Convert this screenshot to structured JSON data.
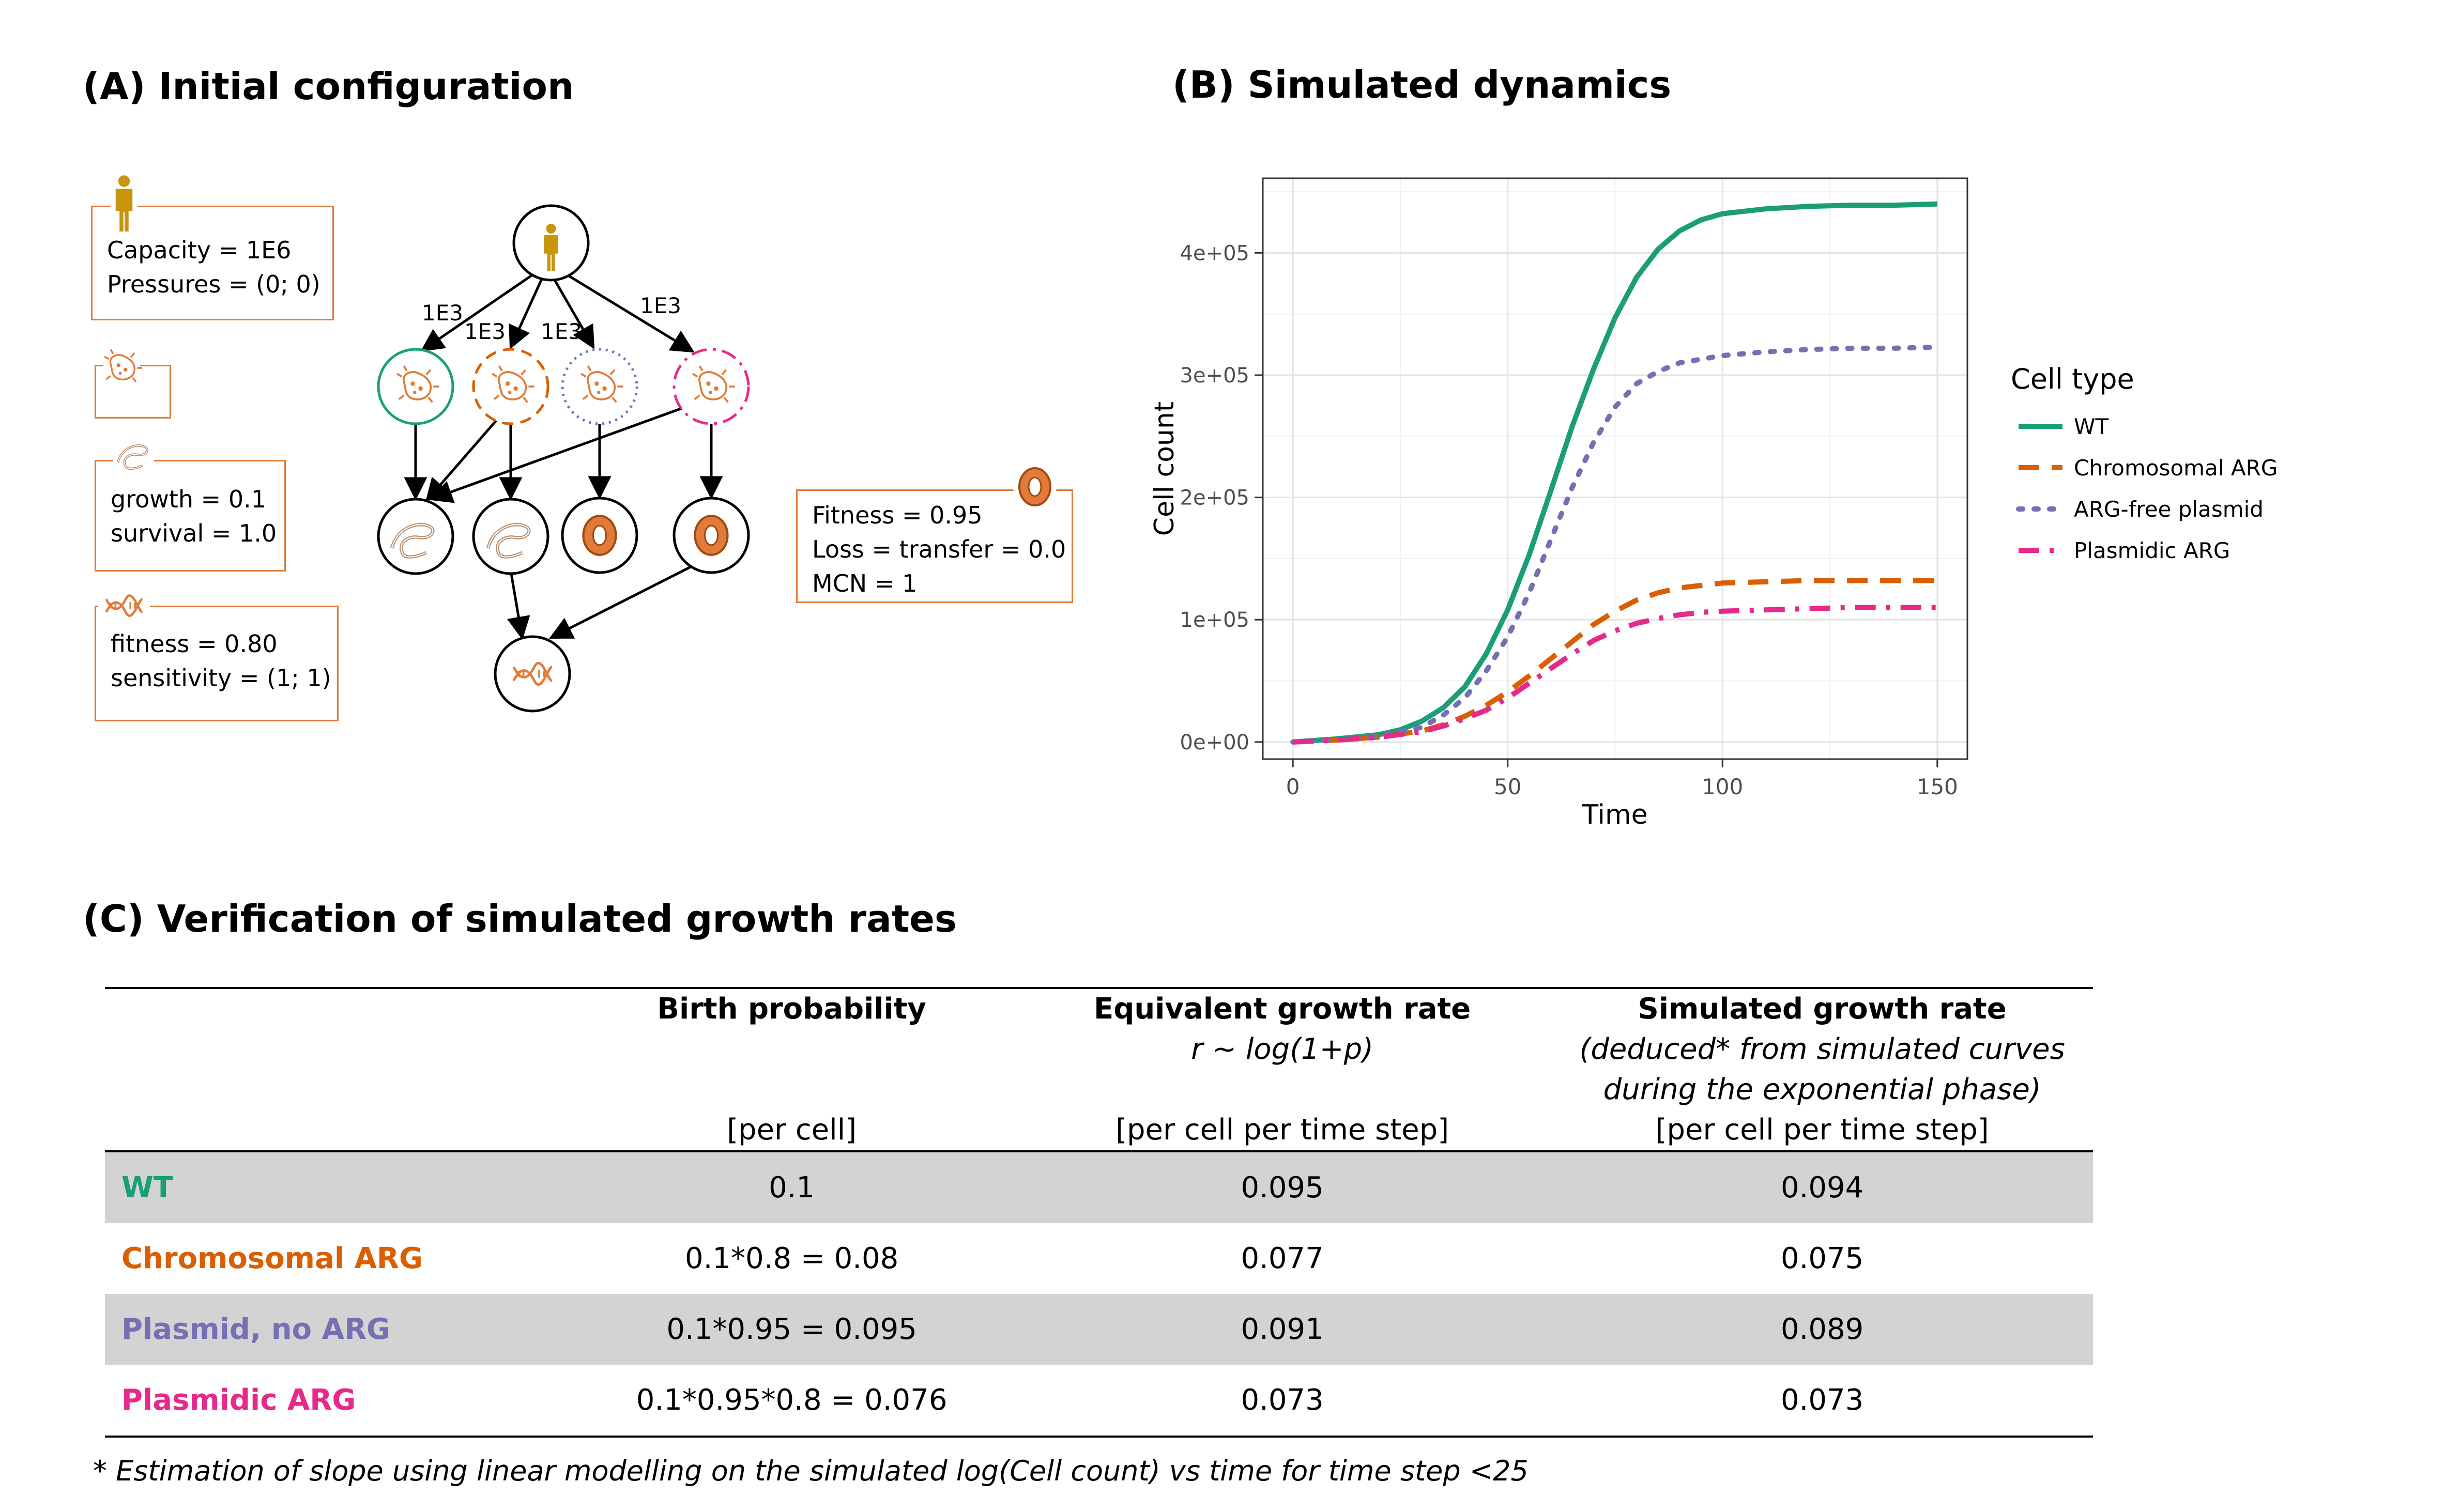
{
  "panel_a": {
    "title": "(A) Initial configuration",
    "host_box": {
      "line1": "Capacity = 1E6",
      "line2": "Pressures = (0; 0)",
      "icon": "person-icon"
    },
    "bacterium_box": {
      "icon": "bacterium-icon"
    },
    "chromosome_box": {
      "line1": "growth = 0.1",
      "line2": "survival = 1.0",
      "icon": "chromosome-icon"
    },
    "gene_box": {
      "line1": "fitness = 0.80",
      "line2": "sensitivity = (1; 1)",
      "icon": "dna-icon"
    },
    "plasmid_box": {
      "line1": "Fitness = 0.95",
      "line2": "Loss = transfer = 0.0",
      "line3": "MCN = 1",
      "icon": "plasmid-icon"
    },
    "edge_labels": [
      "1E3",
      "1E3",
      "1E3",
      "1E3"
    ],
    "colors": {
      "box_border": "#E07B39",
      "wt": "#1B9E77",
      "chromosomal": "#D95F02",
      "plasmid_free": "#7570B3",
      "plasmidic": "#E7298A",
      "host_icon": "#C8950B"
    }
  },
  "panel_b": {
    "title": "(B) Simulated dynamics"
  },
  "chart_data": {
    "type": "line",
    "xlabel": "Time",
    "ylabel": "Cell count",
    "xlim": [
      -7,
      157
    ],
    "ylim": [
      -14000,
      461000
    ],
    "x_ticks": [
      0,
      50,
      100,
      150
    ],
    "x_tick_labels": [
      "0",
      "50",
      "100",
      "150"
    ],
    "y_ticks": [
      0,
      100000,
      200000,
      300000,
      400000
    ],
    "y_tick_labels": [
      "0e+00",
      "1e+05",
      "2e+05",
      "3e+05",
      "4e+05"
    ],
    "grid": true,
    "legend": {
      "title": "Cell type",
      "placement": "right"
    },
    "series": [
      {
        "name": "WT",
        "color": "#1B9E77",
        "dash": "solid",
        "x": [
          0,
          10,
          20,
          25,
          30,
          35,
          40,
          45,
          50,
          55,
          60,
          65,
          70,
          75,
          80,
          85,
          90,
          95,
          100,
          110,
          120,
          130,
          140,
          150
        ],
        "y": [
          0,
          2500,
          6000,
          10000,
          17000,
          28000,
          45000,
          72000,
          108000,
          153000,
          205000,
          258000,
          305000,
          347000,
          380000,
          403000,
          418000,
          427000,
          432000,
          436000,
          438000,
          439000,
          439000,
          440000
        ]
      },
      {
        "name": "Chromosomal ARG",
        "color": "#D95F02",
        "dash": "dashed",
        "x": [
          0,
          10,
          20,
          30,
          35,
          40,
          45,
          50,
          55,
          60,
          65,
          70,
          75,
          80,
          85,
          90,
          95,
          100,
          110,
          120,
          130,
          140,
          150
        ],
        "y": [
          0,
          1500,
          4000,
          9000,
          14000,
          21000,
          30000,
          41000,
          54000,
          68000,
          82000,
          96000,
          107000,
          116000,
          122000,
          126000,
          128000,
          130000,
          131000,
          132000,
          132000,
          132000,
          132000
        ]
      },
      {
        "name": "ARG-free plasmid",
        "color": "#7570B3",
        "dash": "dotted",
        "x": [
          0,
          10,
          20,
          30,
          35,
          40,
          45,
          50,
          55,
          60,
          65,
          70,
          75,
          80,
          85,
          90,
          95,
          100,
          110,
          120,
          130,
          140,
          150
        ],
        "y": [
          0,
          1500,
          4500,
          12000,
          22000,
          36000,
          58000,
          86000,
          122000,
          165000,
          208000,
          245000,
          274000,
          293000,
          303000,
          310000,
          313000,
          316000,
          319000,
          321000,
          322000,
          322000,
          323000
        ]
      },
      {
        "name": "Plasmidic ARG",
        "color": "#E7298A",
        "dash": "dotdash",
        "x": [
          0,
          10,
          20,
          30,
          35,
          40,
          45,
          50,
          55,
          60,
          65,
          70,
          75,
          80,
          85,
          90,
          95,
          100,
          110,
          120,
          130,
          140,
          150
        ],
        "y": [
          0,
          1500,
          3800,
          8500,
          13000,
          19000,
          26000,
          36000,
          48000,
          60000,
          72000,
          83000,
          91000,
          97000,
          101000,
          104000,
          106000,
          107000,
          108000,
          109000,
          110000,
          110000,
          110000
        ]
      }
    ]
  },
  "panel_c": {
    "title": "(C) Verification of simulated growth rates",
    "columns": [
      {
        "title": "",
        "sub1": "",
        "sub2": "",
        "unit": ""
      },
      {
        "title": "Birth probability",
        "sub1": "",
        "sub2": "",
        "unit": "[per cell]"
      },
      {
        "title": "Equivalent growth rate",
        "sub1": "r ~ log(1+p)",
        "sub2": "",
        "unit": "[per cell per time step]"
      },
      {
        "title": "Simulated growth rate",
        "sub1": "(deduced* from simulated curves",
        "sub2": "during the exponential phase)",
        "unit": "[per cell per time step]"
      }
    ],
    "rows": [
      {
        "label": "WT",
        "color": "#1B9E77",
        "birth": "0.1",
        "equivalent": "0.095",
        "simulated": "0.094"
      },
      {
        "label": "Chromosomal ARG",
        "color": "#D95F02",
        "birth": "0.1*0.8 = 0.08",
        "equivalent": "0.077",
        "simulated": "0.075"
      },
      {
        "label": "Plasmid, no ARG",
        "color": "#7570B3",
        "birth": "0.1*0.95 = 0.095",
        "equivalent": "0.091",
        "simulated": "0.089"
      },
      {
        "label": "Plasmidic ARG",
        "color": "#E7298A",
        "birth": "0.1*0.95*0.8 = 0.076",
        "equivalent": "0.073",
        "simulated": "0.073"
      }
    ],
    "footnote": "* Estimation of slope using linear modelling on the simulated log(Cell count) vs time for time step <25"
  }
}
